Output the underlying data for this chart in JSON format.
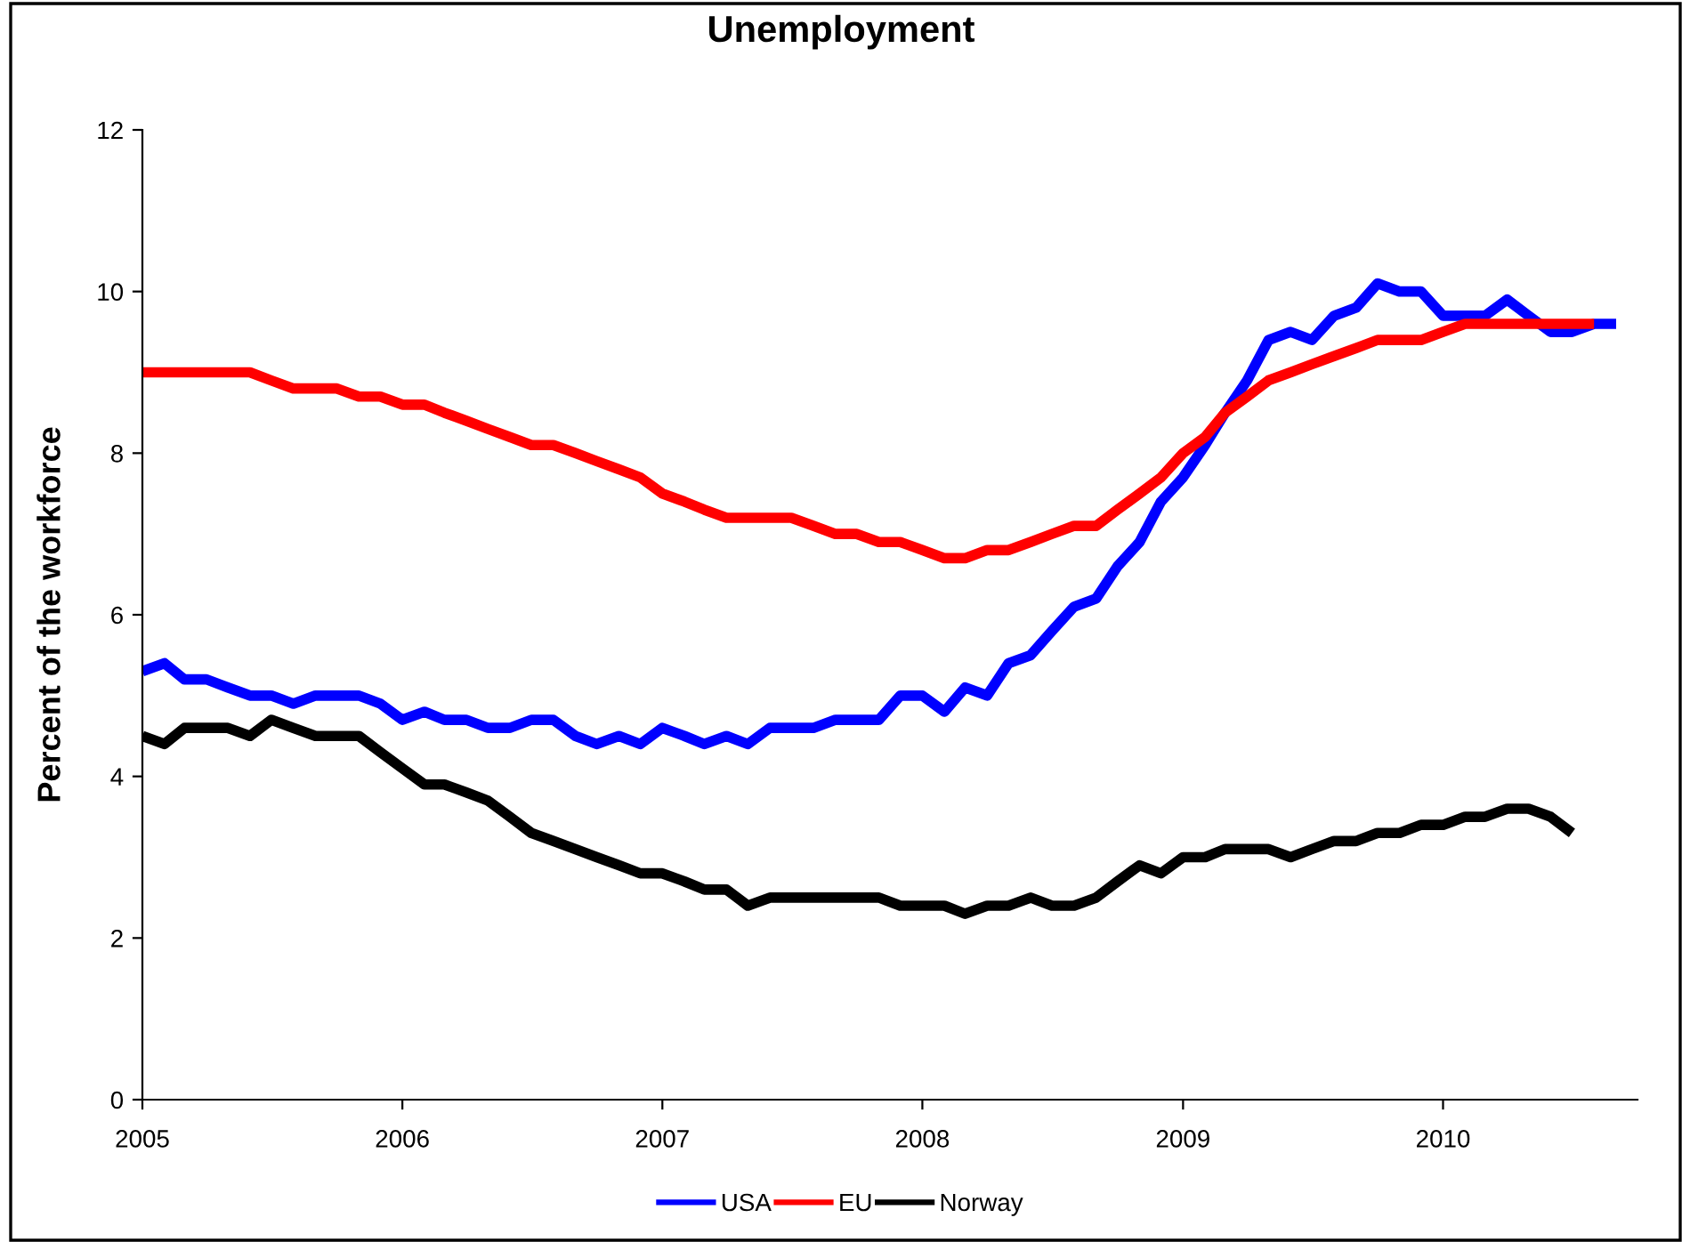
{
  "chart_data": {
    "type": "line",
    "title": "Unemployment",
    "ylabel": "Percent of the workforce",
    "x": [
      "2005-01",
      "2005-02",
      "2005-03",
      "2005-04",
      "2005-05",
      "2005-06",
      "2005-07",
      "2005-08",
      "2005-09",
      "2005-10",
      "2005-11",
      "2005-12",
      "2006-01",
      "2006-02",
      "2006-03",
      "2006-04",
      "2006-05",
      "2006-06",
      "2006-07",
      "2006-08",
      "2006-09",
      "2006-10",
      "2006-11",
      "2006-12",
      "2007-01",
      "2007-02",
      "2007-03",
      "2007-04",
      "2007-05",
      "2007-06",
      "2007-07",
      "2007-08",
      "2007-09",
      "2007-10",
      "2007-11",
      "2007-12",
      "2008-01",
      "2008-02",
      "2008-03",
      "2008-04",
      "2008-05",
      "2008-06",
      "2008-07",
      "2008-08",
      "2008-09",
      "2008-10",
      "2008-11",
      "2008-12",
      "2009-01",
      "2009-02",
      "2009-03",
      "2009-04",
      "2009-05",
      "2009-06",
      "2009-07",
      "2009-08",
      "2009-09",
      "2009-10",
      "2009-11",
      "2009-12",
      "2010-01",
      "2010-02",
      "2010-03",
      "2010-04",
      "2010-05",
      "2010-06",
      "2010-07",
      "2010-08",
      "2010-09"
    ],
    "series": [
      {
        "name": "USA",
        "color": "#0000ff",
        "values": [
          5.3,
          5.4,
          5.2,
          5.2,
          5.1,
          5.0,
          5.0,
          4.9,
          5.0,
          5.0,
          5.0,
          4.9,
          4.7,
          4.8,
          4.7,
          4.7,
          4.6,
          4.6,
          4.7,
          4.7,
          4.5,
          4.4,
          4.5,
          4.4,
          4.6,
          4.5,
          4.4,
          4.5,
          4.4,
          4.6,
          4.6,
          4.6,
          4.7,
          4.7,
          4.7,
          5.0,
          5.0,
          4.8,
          5.1,
          5.0,
          5.4,
          5.5,
          5.8,
          6.1,
          6.2,
          6.6,
          6.9,
          7.4,
          7.7,
          8.1,
          8.5,
          8.9,
          9.4,
          9.5,
          9.4,
          9.7,
          9.8,
          10.1,
          10.0,
          10.0,
          9.7,
          9.7,
          9.7,
          9.9,
          9.7,
          9.5,
          9.5,
          9.6,
          9.6
        ]
      },
      {
        "name": "EU",
        "color": "#ff0000",
        "values": [
          9.0,
          9.0,
          9.0,
          9.0,
          9.0,
          9.0,
          8.9,
          8.8,
          8.8,
          8.8,
          8.7,
          8.7,
          8.6,
          8.6,
          8.5,
          8.4,
          8.3,
          8.2,
          8.1,
          8.1,
          8.0,
          7.9,
          7.8,
          7.7,
          7.5,
          7.4,
          7.3,
          7.2,
          7.2,
          7.2,
          7.2,
          7.1,
          7.0,
          7.0,
          6.9,
          6.9,
          6.8,
          6.7,
          6.7,
          6.8,
          6.8,
          6.9,
          7.0,
          7.1,
          7.1,
          7.3,
          7.5,
          7.7,
          8.0,
          8.2,
          8.5,
          8.7,
          8.9,
          9.0,
          9.1,
          9.2,
          9.3,
          9.4,
          9.4,
          9.4,
          9.5,
          9.6,
          9.6,
          9.6,
          9.6,
          9.6,
          9.6,
          9.6,
          null
        ]
      },
      {
        "name": "Norway",
        "color": "#000000",
        "values": [
          4.5,
          4.4,
          4.6,
          4.6,
          4.6,
          4.5,
          4.7,
          4.6,
          4.5,
          4.5,
          4.5,
          4.3,
          4.1,
          3.9,
          3.9,
          3.8,
          3.7,
          3.5,
          3.3,
          3.2,
          3.1,
          3.0,
          2.9,
          2.8,
          2.8,
          2.7,
          2.6,
          2.6,
          2.4,
          2.5,
          2.5,
          2.5,
          2.5,
          2.5,
          2.5,
          2.4,
          2.4,
          2.4,
          2.3,
          2.4,
          2.4,
          2.5,
          2.4,
          2.4,
          2.5,
          2.7,
          2.9,
          2.8,
          3.0,
          3.0,
          3.1,
          3.1,
          3.1,
          3.0,
          3.1,
          3.2,
          3.2,
          3.3,
          3.3,
          3.4,
          3.4,
          3.5,
          3.5,
          3.6,
          3.6,
          3.5,
          3.3,
          null,
          null
        ]
      }
    ],
    "xlim": [
      "2005-01-01",
      "2010-10-01"
    ],
    "xticks": [
      {
        "value": "2005-01-01",
        "label": "2005"
      },
      {
        "value": "2006-01-01",
        "label": "2006"
      },
      {
        "value": "2007-01-01",
        "label": "2007"
      },
      {
        "value": "2008-01-01",
        "label": "2008"
      },
      {
        "value": "2009-01-01",
        "label": "2009"
      },
      {
        "value": "2010-01-01",
        "label": "2010"
      }
    ],
    "ylim": [
      0,
      12
    ],
    "yticks": [
      0,
      2,
      4,
      6,
      8,
      10,
      12
    ],
    "grid": false,
    "legend": "bottom",
    "marker": "none",
    "line_style": "solid"
  }
}
